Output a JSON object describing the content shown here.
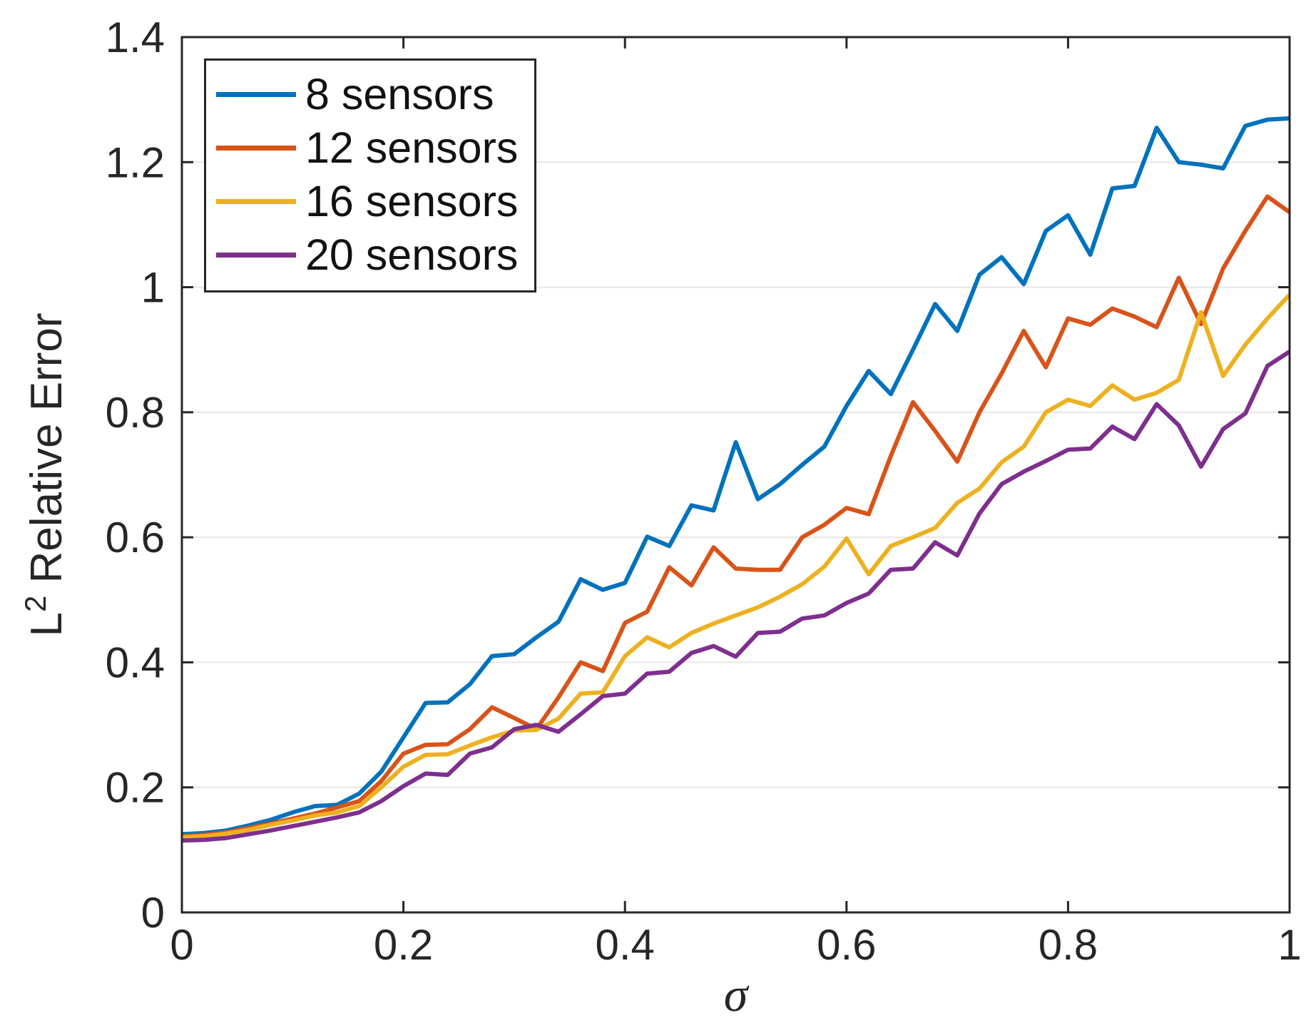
{
  "chart_data": {
    "type": "line",
    "title": "",
    "xlabel": "σ",
    "ylabel": "L² Relative Error",
    "xlim": [
      0,
      1
    ],
    "ylim": [
      0,
      1.4
    ],
    "x_ticks": [
      0,
      0.2,
      0.4,
      0.6,
      0.8,
      1
    ],
    "x_tick_labels": [
      "0",
      "0.2",
      "0.4",
      "0.6",
      "0.8",
      "1"
    ],
    "y_ticks": [
      0,
      0.2,
      0.4,
      0.6,
      0.8,
      1,
      1.2,
      1.4
    ],
    "y_tick_labels": [
      "0",
      "0.2",
      "0.4",
      "0.6",
      "0.8",
      "1",
      "1.2",
      "1.4"
    ],
    "grid": "horizontal-only",
    "legend_position": "top-left",
    "axis_color": "#262626",
    "grid_color": "#e6e6e6",
    "background_color": "#ffffff",
    "x": [
      0,
      0.02,
      0.04,
      0.06,
      0.08,
      0.1,
      0.12,
      0.14,
      0.16,
      0.18,
      0.2,
      0.22,
      0.24,
      0.26,
      0.28,
      0.3,
      0.32,
      0.34,
      0.36,
      0.38,
      0.4,
      0.42,
      0.44,
      0.46,
      0.48,
      0.5,
      0.52,
      0.54,
      0.56,
      0.58,
      0.6,
      0.62,
      0.64,
      0.66,
      0.68,
      0.7,
      0.72,
      0.74,
      0.76,
      0.78,
      0.8,
      0.82,
      0.84,
      0.86,
      0.88,
      0.9,
      0.92,
      0.94,
      0.96,
      0.98,
      1
    ],
    "series": [
      {
        "name": "8 sensors",
        "color": "#0072BD",
        "values": [
          0.125,
          0.127,
          0.131,
          0.139,
          0.148,
          0.16,
          0.17,
          0.172,
          0.19,
          0.225,
          0.28,
          0.335,
          0.336,
          0.365,
          0.41,
          0.413,
          0.44,
          0.465,
          0.533,
          0.516,
          0.527,
          0.601,
          0.586,
          0.651,
          0.643,
          0.752,
          0.661,
          0.685,
          0.716,
          0.745,
          0.81,
          0.866,
          0.829,
          0.9,
          0.973,
          0.93,
          1.02,
          1.048,
          1.005,
          1.09,
          1.115,
          1.052,
          1.158,
          1.162,
          1.255,
          1.2,
          1.196,
          1.19,
          1.258,
          1.268,
          1.27
        ]
      },
      {
        "name": "12 sensors",
        "color": "#D95319",
        "values": [
          0.122,
          0.124,
          0.128,
          0.135,
          0.142,
          0.15,
          0.158,
          0.168,
          0.178,
          0.21,
          0.254,
          0.268,
          0.269,
          0.293,
          0.328,
          0.311,
          0.293,
          0.344,
          0.4,
          0.386,
          0.463,
          0.481,
          0.552,
          0.523,
          0.584,
          0.55,
          0.548,
          0.548,
          0.6,
          0.62,
          0.647,
          0.637,
          0.73,
          0.816,
          0.77,
          0.721,
          0.8,
          0.862,
          0.93,
          0.872,
          0.95,
          0.94,
          0.966,
          0.953,
          0.936,
          1.015,
          0.941,
          1.03,
          1.09,
          1.145,
          1.12
        ]
      },
      {
        "name": "16 sensors",
        "color": "#EDB120",
        "values": [
          0.12,
          0.122,
          0.126,
          0.132,
          0.14,
          0.147,
          0.155,
          0.16,
          0.17,
          0.2,
          0.233,
          0.252,
          0.253,
          0.267,
          0.28,
          0.291,
          0.292,
          0.31,
          0.35,
          0.352,
          0.41,
          0.44,
          0.424,
          0.447,
          0.462,
          0.475,
          0.488,
          0.505,
          0.525,
          0.553,
          0.598,
          0.541,
          0.586,
          0.6,
          0.615,
          0.655,
          0.678,
          0.72,
          0.745,
          0.8,
          0.82,
          0.81,
          0.843,
          0.82,
          0.831,
          0.852,
          0.96,
          0.858,
          0.908,
          0.95,
          0.988
        ]
      },
      {
        "name": "20 sensors",
        "color": "#7E2F8E",
        "values": [
          0.115,
          0.116,
          0.119,
          0.125,
          0.131,
          0.138,
          0.145,
          0.152,
          0.16,
          0.178,
          0.202,
          0.222,
          0.22,
          0.254,
          0.264,
          0.293,
          0.3,
          0.289,
          0.317,
          0.346,
          0.35,
          0.382,
          0.385,
          0.415,
          0.426,
          0.409,
          0.447,
          0.449,
          0.47,
          0.475,
          0.495,
          0.51,
          0.548,
          0.55,
          0.592,
          0.571,
          0.638,
          0.685,
          0.705,
          0.722,
          0.74,
          0.742,
          0.777,
          0.757,
          0.813,
          0.779,
          0.713,
          0.773,
          0.798,
          0.874,
          0.897
        ]
      }
    ]
  },
  "legend": {
    "items": [
      {
        "label": "8 sensors"
      },
      {
        "label": "12 sensors"
      },
      {
        "label": "16 sensors"
      },
      {
        "label": "20 sensors"
      }
    ]
  }
}
